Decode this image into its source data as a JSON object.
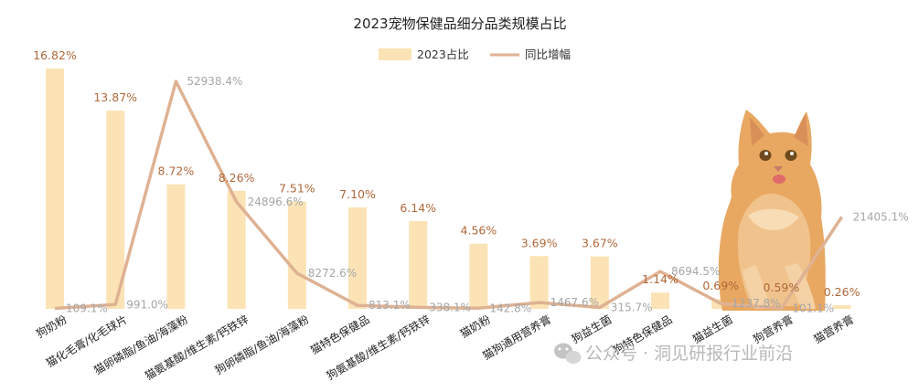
{
  "chart_data": {
    "type": "bar",
    "title": "2023宠物保健品细分品类规模占比",
    "categories": [
      "狗奶粉",
      "猫化毛膏/化毛球片",
      "猫卵磷脂/鱼油/海藻粉",
      "猫氨基酸/维生素/钙铁锌",
      "狗卵磷脂/鱼油/海藻粉",
      "猫特色保健品",
      "狗氨基酸/维生素/钙铁锌",
      "猫奶粉",
      "猫狗通用营养膏",
      "狗益生菌",
      "狗特色保健品",
      "猫益生菌",
      "狗营养膏",
      "猫营养膏"
    ],
    "series": [
      {
        "name": "2023占比",
        "type": "bar",
        "color": "#fbe3b5",
        "values": [
          16.82,
          13.87,
          8.72,
          8.26,
          7.51,
          7.1,
          6.14,
          4.56,
          3.69,
          3.67,
          1.14,
          0.69,
          0.59,
          0.26
        ],
        "labels": [
          "16.82%",
          "13.87%",
          "8.72%",
          "8.26%",
          "7.51%",
          "7.10%",
          "6.14%",
          "4.56%",
          "3.69%",
          "3.67%",
          "1.14%",
          "0.69%",
          "0.59%",
          "0.26%"
        ]
      },
      {
        "name": "同比增幅",
        "type": "line",
        "color": "#deb293",
        "values": [
          109.1,
          991.0,
          52938.4,
          24896.6,
          8272.6,
          813.1,
          338.1,
          142.8,
          1467.6,
          315.7,
          8694.5,
          1237.8,
          101.1,
          21405.1
        ],
        "labels": [
          "109.1%",
          "991.0%",
          "52938.4%",
          "24896.6%",
          "8272.6%",
          "813.1%",
          "338.1%",
          "142.8%",
          "1467.6%",
          "315.7%",
          "8694.5%",
          "1237.8%",
          "101.1%",
          "21405.1%"
        ]
      }
    ],
    "legend_position": "top-center",
    "grid": false,
    "y_axis_visible": false
  },
  "watermark": {
    "text": "公众号 · 洞见研报行业前沿",
    "icon": "wechat-icon"
  },
  "decoration": {
    "image": "cat-photo"
  }
}
